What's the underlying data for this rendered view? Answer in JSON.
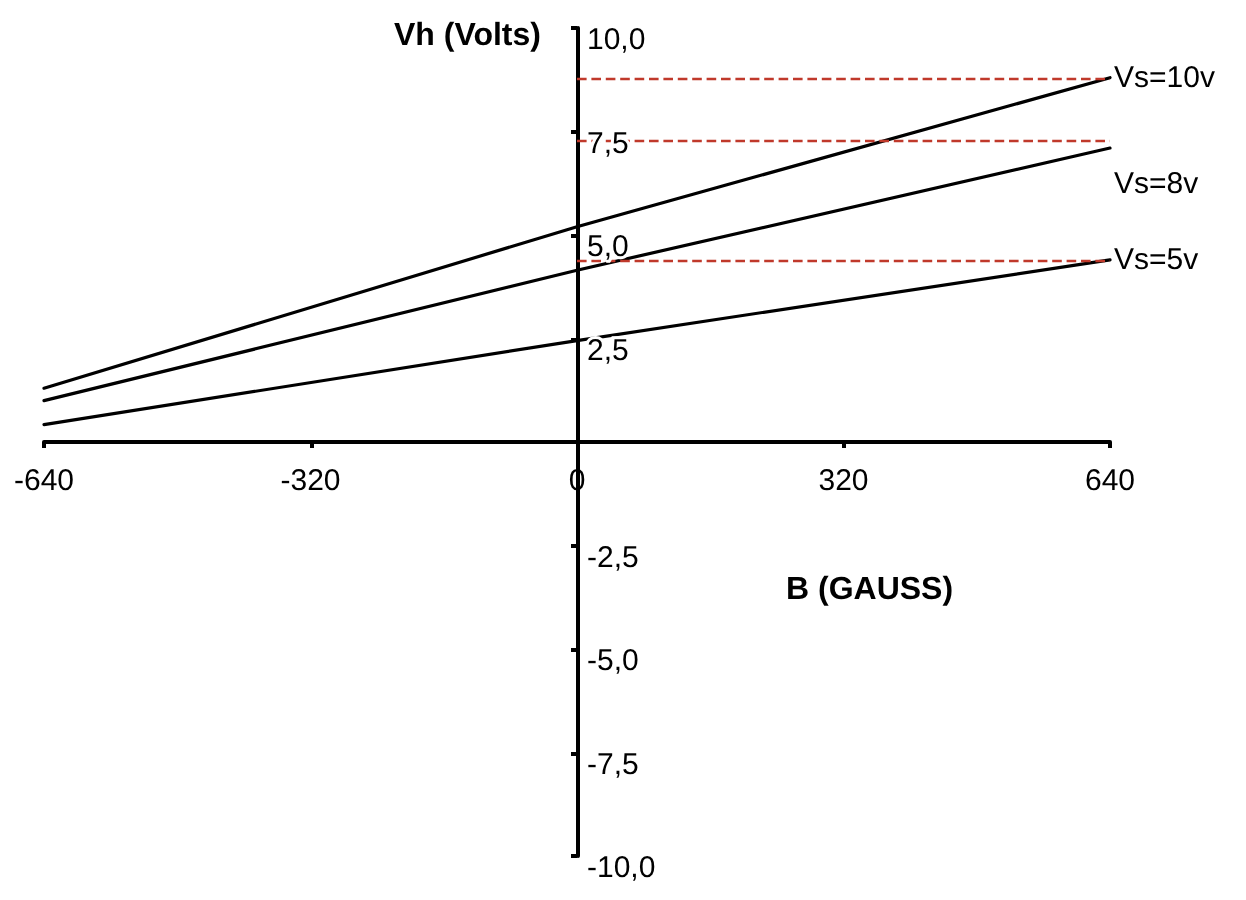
{
  "chart_data": {
    "type": "line",
    "xlabel": "B (GAUSS)",
    "ylabel": "Vh (Volts)",
    "x": [
      -640,
      0,
      640
    ],
    "series": [
      {
        "name": "Vs=10v",
        "color": "#000000",
        "values": [
          1.3,
          5.2,
          8.8
        ]
      },
      {
        "name": "Vs=8v",
        "color": "#000000",
        "values": [
          1.0,
          4.15,
          7.1
        ]
      },
      {
        "name": "Vs=5v",
        "color": "#000000",
        "values": [
          0.42,
          2.45,
          4.4
        ]
      }
    ],
    "xlim": [
      -640,
      640
    ],
    "xticks": [
      -640,
      -320,
      0,
      320,
      640
    ],
    "ylim": [
      -10,
      10
    ],
    "yticks": [
      {
        "value": -10,
        "label": "-10,0"
      },
      {
        "value": -7.5,
        "label": "-7,5"
      },
      {
        "value": -5,
        "label": "-5,0"
      },
      {
        "value": -2.5,
        "label": "-2,5"
      },
      {
        "value": 2.5,
        "label": "2,5"
      },
      {
        "value": 5,
        "label": "5,0"
      },
      {
        "value": 7.5,
        "label": "7,5"
      },
      {
        "value": 10,
        "label": "10,0"
      }
    ],
    "ref_lines": [
      {
        "axis": "y",
        "value": 8.8,
        "color": "#c0392b",
        "line_style": "dashed"
      },
      {
        "axis": "y",
        "value": 7.3,
        "color": "#c0392b",
        "line_style": "dashed"
      },
      {
        "axis": "y",
        "value": 4.4,
        "color": "#c0392b",
        "line_style": "dashed"
      }
    ],
    "grid": false,
    "legend": false,
    "marker": "none",
    "line_style": "solid"
  }
}
